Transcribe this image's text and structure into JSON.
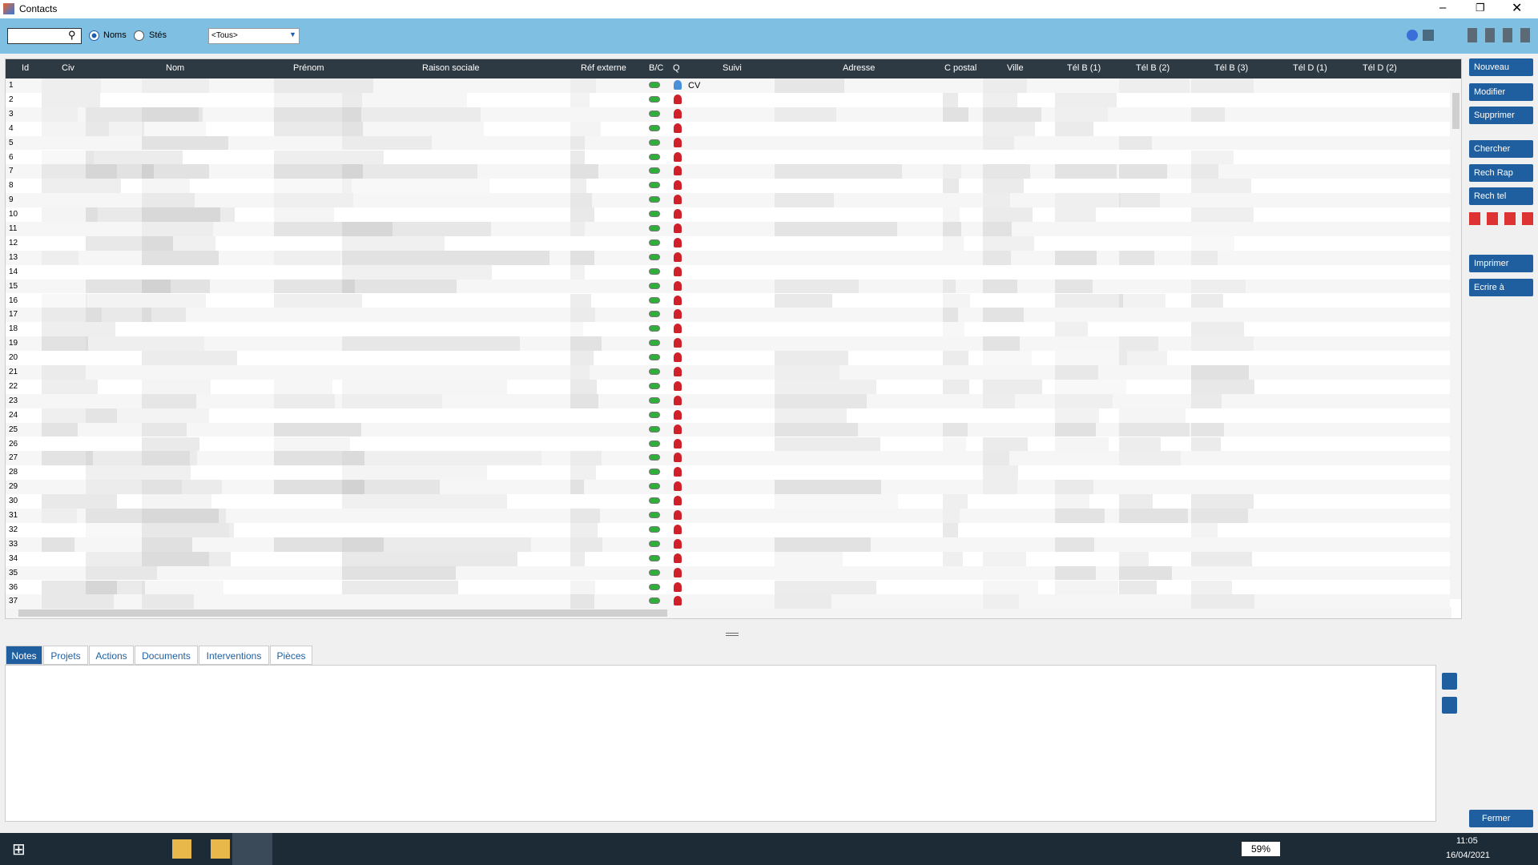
{
  "window": {
    "title": "Contacts"
  },
  "toolbar": {
    "radio_names": "Noms",
    "radio_companies": "Stés",
    "filter": "<Tous>"
  },
  "grid": {
    "columns": [
      "Id",
      "Civ",
      "Nom",
      "Prénom",
      "Raison sociale",
      "Réf externe",
      "B/C",
      "Q",
      "Suivi",
      "Adresse",
      "C postal",
      "Ville",
      "Tél B (1)",
      "Tél B (2)",
      "Tél B (3)",
      "Tél D (1)",
      "Tél D (2)"
    ],
    "ids": [
      1,
      2,
      3,
      4,
      5,
      6,
      7,
      8,
      9,
      10,
      11,
      12,
      13,
      14,
      15,
      16,
      17,
      18,
      19,
      20,
      21,
      22,
      23,
      24,
      25,
      26,
      27,
      28,
      29,
      30,
      31,
      32,
      33,
      34,
      35,
      36,
      37
    ],
    "first_row_suivi": "CV"
  },
  "buttons": [
    "Nouveau",
    "Modifier",
    "Supprimer",
    "Chercher",
    "Rech Rap",
    "Rech tel",
    "Imprimer",
    "Ecrire à"
  ],
  "close_button": "Fermer",
  "tabs": [
    "Notes",
    "Projets",
    "Actions",
    "Documents",
    "Interventions",
    "Pièces"
  ],
  "taskbar": {
    "battery": "59%",
    "time": "11:05",
    "date": "16/04/2021"
  }
}
